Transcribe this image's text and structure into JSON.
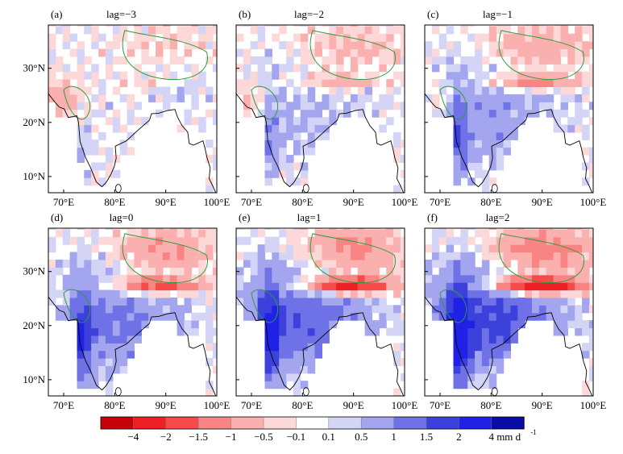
{
  "chart_data": {
    "type": "heatmap",
    "panels": [
      {
        "tag": "(a)",
        "title": "lag=−3"
      },
      {
        "tag": "(b)",
        "title": "lag=−2"
      },
      {
        "tag": "(c)",
        "title": "lag=−1"
      },
      {
        "tag": "(d)",
        "title": "lag=0"
      },
      {
        "tag": "(e)",
        "title": "lag=1"
      },
      {
        "tag": "(f)",
        "title": "lag=2"
      }
    ],
    "x_ticks": [
      "70°E",
      "80°E",
      "90°E",
      "100°E"
    ],
    "y_ticks": [
      "30°N",
      "20°N",
      "10°N"
    ],
    "x_range": [
      67,
      100
    ],
    "y_range": [
      7,
      38
    ],
    "colorbar": {
      "levels": [
        "−4",
        "−2",
        "−1.5",
        "−1",
        "−0.5",
        "−0.1",
        "0.1",
        "0.5",
        "1",
        "1.5",
        "2",
        "4"
      ],
      "colors": [
        "#c8000a",
        "#ee1f25",
        "#f74a4a",
        "#f88484",
        "#fbb0b0",
        "#fdd8d8",
        "#ffffff",
        "#d3d4f6",
        "#a3a6ee",
        "#6e72e6",
        "#3c41dc",
        "#1f21e6",
        "#0a0ca6"
      ],
      "unit": "mm d",
      "unit_exp": "-1"
    }
  }
}
